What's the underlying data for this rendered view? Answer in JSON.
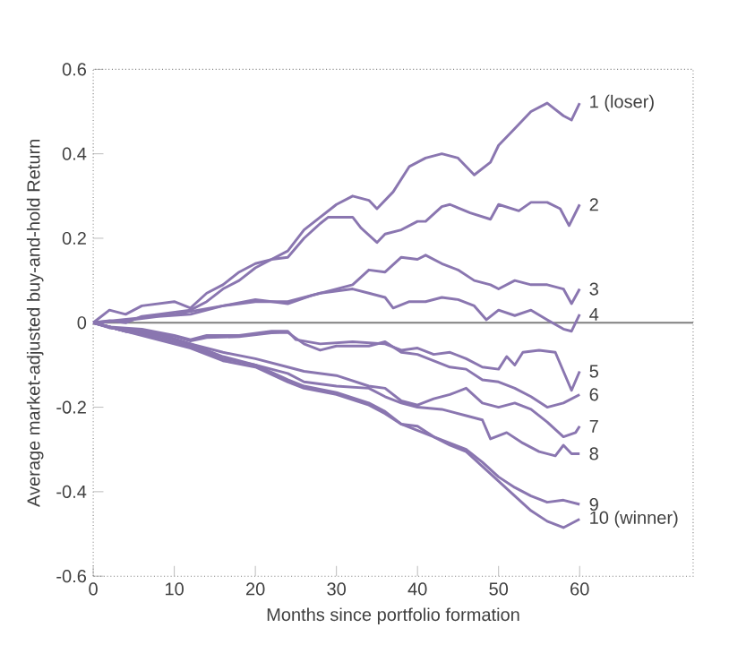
{
  "chart_data": {
    "type": "line",
    "xlabel": "Months since portfolio formation",
    "ylabel": "Average market-adjusted buy-and-hold Return",
    "xlim": [
      0,
      74
    ],
    "ylim": [
      -0.6,
      0.6
    ],
    "xticks": [
      0,
      10,
      20,
      30,
      40,
      50,
      60
    ],
    "yticks": [
      -0.6,
      -0.4,
      -0.2,
      0,
      0.2,
      0.4,
      0.6
    ],
    "grid": false,
    "legend": false,
    "ref_lines": [
      {
        "axis": "y",
        "value": 0,
        "color": "#7f7f7f"
      }
    ],
    "series": [
      {
        "name": "1 (loser)",
        "color": "#8a76b0",
        "x": [
          0,
          2,
          4,
          6,
          8,
          10,
          12,
          14,
          16,
          18,
          20,
          22,
          24,
          26,
          28,
          30,
          32,
          34,
          35,
          37,
          39,
          41,
          43,
          45,
          47,
          49,
          50,
          52,
          54,
          56,
          58,
          59,
          60
        ],
        "values": [
          0,
          0.03,
          0.02,
          0.04,
          0.045,
          0.05,
          0.035,
          0.07,
          0.09,
          0.12,
          0.14,
          0.15,
          0.17,
          0.22,
          0.25,
          0.28,
          0.3,
          0.29,
          0.27,
          0.31,
          0.37,
          0.39,
          0.4,
          0.39,
          0.35,
          0.38,
          0.42,
          0.46,
          0.5,
          0.52,
          0.49,
          0.48,
          0.52
        ]
      },
      {
        "name": "2",
        "color": "#8a76b0",
        "x": [
          0,
          2,
          4,
          6,
          8,
          10,
          12,
          14,
          16,
          18,
          20,
          22,
          24,
          26,
          28,
          29,
          32,
          33,
          35,
          36,
          38,
          40,
          41,
          43,
          44,
          46.5,
          49,
          50,
          52.5,
          54,
          56,
          57.6,
          58.7,
          60
        ],
        "values": [
          0,
          0.005,
          0,
          0.015,
          0.02,
          0.025,
          0.03,
          0.05,
          0.08,
          0.1,
          0.13,
          0.15,
          0.155,
          0.2,
          0.235,
          0.25,
          0.25,
          0.225,
          0.19,
          0.21,
          0.22,
          0.24,
          0.24,
          0.275,
          0.28,
          0.26,
          0.245,
          0.28,
          0.265,
          0.285,
          0.285,
          0.27,
          0.23,
          0.28
        ]
      },
      {
        "name": "3",
        "color": "#8a76b0",
        "x": [
          0,
          10,
          16,
          20,
          24,
          27,
          30,
          32,
          34,
          36,
          38,
          40,
          41,
          43,
          45,
          47,
          49,
          50,
          52,
          54,
          56,
          58,
          59,
          60
        ],
        "values": [
          0,
          0.02,
          0.04,
          0.055,
          0.045,
          0.065,
          0.08,
          0.09,
          0.125,
          0.12,
          0.155,
          0.15,
          0.16,
          0.14,
          0.125,
          0.1,
          0.09,
          0.08,
          0.1,
          0.09,
          0.09,
          0.08,
          0.045,
          0.08
        ]
      },
      {
        "name": "4",
        "color": "#8a76b0",
        "x": [
          0,
          4,
          8,
          12,
          16,
          20,
          24,
          28,
          30,
          32,
          34,
          36,
          37,
          39,
          41,
          43,
          45,
          47,
          48.5,
          50,
          52,
          54,
          56,
          58,
          59,
          60
        ],
        "values": [
          0,
          0.005,
          0.015,
          0.02,
          0.04,
          0.05,
          0.05,
          0.07,
          0.075,
          0.08,
          0.07,
          0.06,
          0.035,
          0.05,
          0.05,
          0.06,
          0.055,
          0.04,
          0.007,
          0.03,
          0.017,
          0.03,
          0.007,
          -0.015,
          -0.02,
          0.02
        ]
      },
      {
        "name": "5",
        "color": "#8a76b0",
        "x": [
          0,
          2,
          6,
          10,
          12,
          14,
          18,
          22,
          24,
          25,
          28,
          32,
          36,
          38,
          40,
          42,
          44,
          46,
          48,
          50,
          51,
          52,
          53,
          55,
          57,
          58,
          59,
          60
        ],
        "values": [
          0,
          -0.01,
          -0.015,
          -0.03,
          -0.04,
          -0.03,
          -0.03,
          -0.02,
          -0.02,
          -0.04,
          -0.05,
          -0.045,
          -0.05,
          -0.065,
          -0.06,
          -0.075,
          -0.07,
          -0.085,
          -0.105,
          -0.11,
          -0.08,
          -0.1,
          -0.07,
          -0.065,
          -0.07,
          -0.115,
          -0.16,
          -0.115
        ]
      },
      {
        "name": "6",
        "color": "#8a76b0",
        "x": [
          0,
          2,
          6,
          10,
          12,
          14,
          18,
          22,
          24,
          26,
          28,
          30,
          32,
          34,
          36,
          38,
          40,
          42,
          44,
          46,
          48,
          50,
          52,
          54,
          56,
          58,
          60
        ],
        "values": [
          0,
          -0.012,
          -0.018,
          -0.032,
          -0.043,
          -0.035,
          -0.033,
          -0.024,
          -0.023,
          -0.05,
          -0.065,
          -0.055,
          -0.055,
          -0.055,
          -0.045,
          -0.07,
          -0.075,
          -0.09,
          -0.105,
          -0.11,
          -0.135,
          -0.14,
          -0.155,
          -0.175,
          -0.2,
          -0.19,
          -0.17
        ]
      },
      {
        "name": "7",
        "color": "#8a76b0",
        "x": [
          0,
          4,
          8,
          12,
          16,
          20,
          24,
          26,
          30,
          34,
          36,
          38,
          40,
          42,
          44,
          46,
          48,
          50,
          52,
          54,
          56,
          58,
          59.5,
          60
        ],
        "values": [
          0,
          -0.02,
          -0.025,
          -0.05,
          -0.07,
          -0.085,
          -0.105,
          -0.115,
          -0.125,
          -0.15,
          -0.155,
          -0.185,
          -0.195,
          -0.18,
          -0.17,
          -0.155,
          -0.19,
          -0.2,
          -0.19,
          -0.205,
          -0.235,
          -0.27,
          -0.26,
          -0.245
        ]
      },
      {
        "name": "8",
        "color": "#8a76b0",
        "x": [
          0,
          4,
          8,
          12,
          16,
          20,
          24,
          26,
          30,
          34,
          36,
          38,
          40,
          43,
          46,
          48,
          49,
          51,
          53,
          55,
          57,
          58,
          59,
          60
        ],
        "values": [
          0,
          -0.02,
          -0.03,
          -0.05,
          -0.08,
          -0.1,
          -0.12,
          -0.14,
          -0.15,
          -0.155,
          -0.175,
          -0.19,
          -0.2,
          -0.205,
          -0.22,
          -0.23,
          -0.275,
          -0.26,
          -0.285,
          -0.305,
          -0.315,
          -0.29,
          -0.31,
          -0.31
        ]
      },
      {
        "name": "9",
        "color": "#8a76b0",
        "x": [
          0,
          4,
          8,
          12,
          16,
          20,
          24,
          26,
          30,
          34,
          36,
          38,
          40,
          42,
          44,
          46,
          48,
          50,
          52,
          54,
          56,
          58,
          60
        ],
        "values": [
          0,
          -0.02,
          -0.035,
          -0.055,
          -0.085,
          -0.1,
          -0.135,
          -0.15,
          -0.165,
          -0.19,
          -0.21,
          -0.24,
          -0.245,
          -0.27,
          -0.285,
          -0.3,
          -0.33,
          -0.365,
          -0.39,
          -0.41,
          -0.425,
          -0.42,
          -0.43
        ]
      },
      {
        "name": "10 (winner)",
        "color": "#8a76b0",
        "x": [
          0,
          4,
          8,
          12,
          16,
          20,
          24,
          26,
          30,
          34,
          36,
          38,
          40,
          42,
          44,
          46,
          48,
          50,
          52,
          54,
          56,
          58,
          59,
          60
        ],
        "values": [
          0,
          -0.02,
          -0.04,
          -0.06,
          -0.09,
          -0.105,
          -0.14,
          -0.155,
          -0.17,
          -0.195,
          -0.215,
          -0.24,
          -0.255,
          -0.27,
          -0.29,
          -0.305,
          -0.34,
          -0.375,
          -0.41,
          -0.445,
          -0.47,
          -0.485,
          -0.475,
          -0.465
        ]
      }
    ]
  }
}
